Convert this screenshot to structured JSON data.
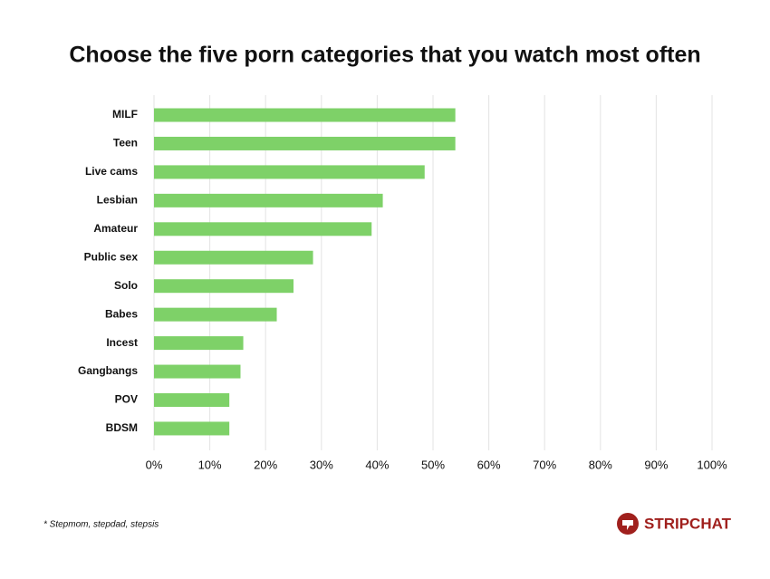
{
  "chart_data": {
    "type": "bar",
    "orientation": "horizontal",
    "title": "Choose the five porn categories that you watch most often",
    "categories": [
      "MILF",
      "Teen",
      "Live cams",
      "Lesbian",
      "Amateur",
      "Public sex",
      "Solo",
      "Babes",
      "Incest",
      "Gangbangs",
      "POV",
      "BDSM"
    ],
    "values": [
      54,
      54,
      48.5,
      41,
      39,
      28.5,
      25,
      22,
      16,
      15.5,
      13.5,
      13.5
    ],
    "color": "#7ed168",
    "xlim": [
      0,
      100
    ],
    "xticks": [
      {
        "value": 0,
        "label": "0%"
      },
      {
        "value": 10,
        "label": "10%"
      },
      {
        "value": 20,
        "label": "20%"
      },
      {
        "value": 30,
        "label": "30%"
      },
      {
        "value": 40,
        "label": "40%"
      },
      {
        "value": 50,
        "label": "50%"
      },
      {
        "value": 60,
        "label": "60%"
      },
      {
        "value": 70,
        "label": "70%"
      },
      {
        "value": 80,
        "label": "80%"
      },
      {
        "value": 90,
        "label": "90%"
      },
      {
        "value": 100,
        "label": "100%"
      }
    ],
    "grid": true,
    "footnote": "* Stepmom, stepdad, stepsis",
    "logo": "STRIPCHAT"
  }
}
